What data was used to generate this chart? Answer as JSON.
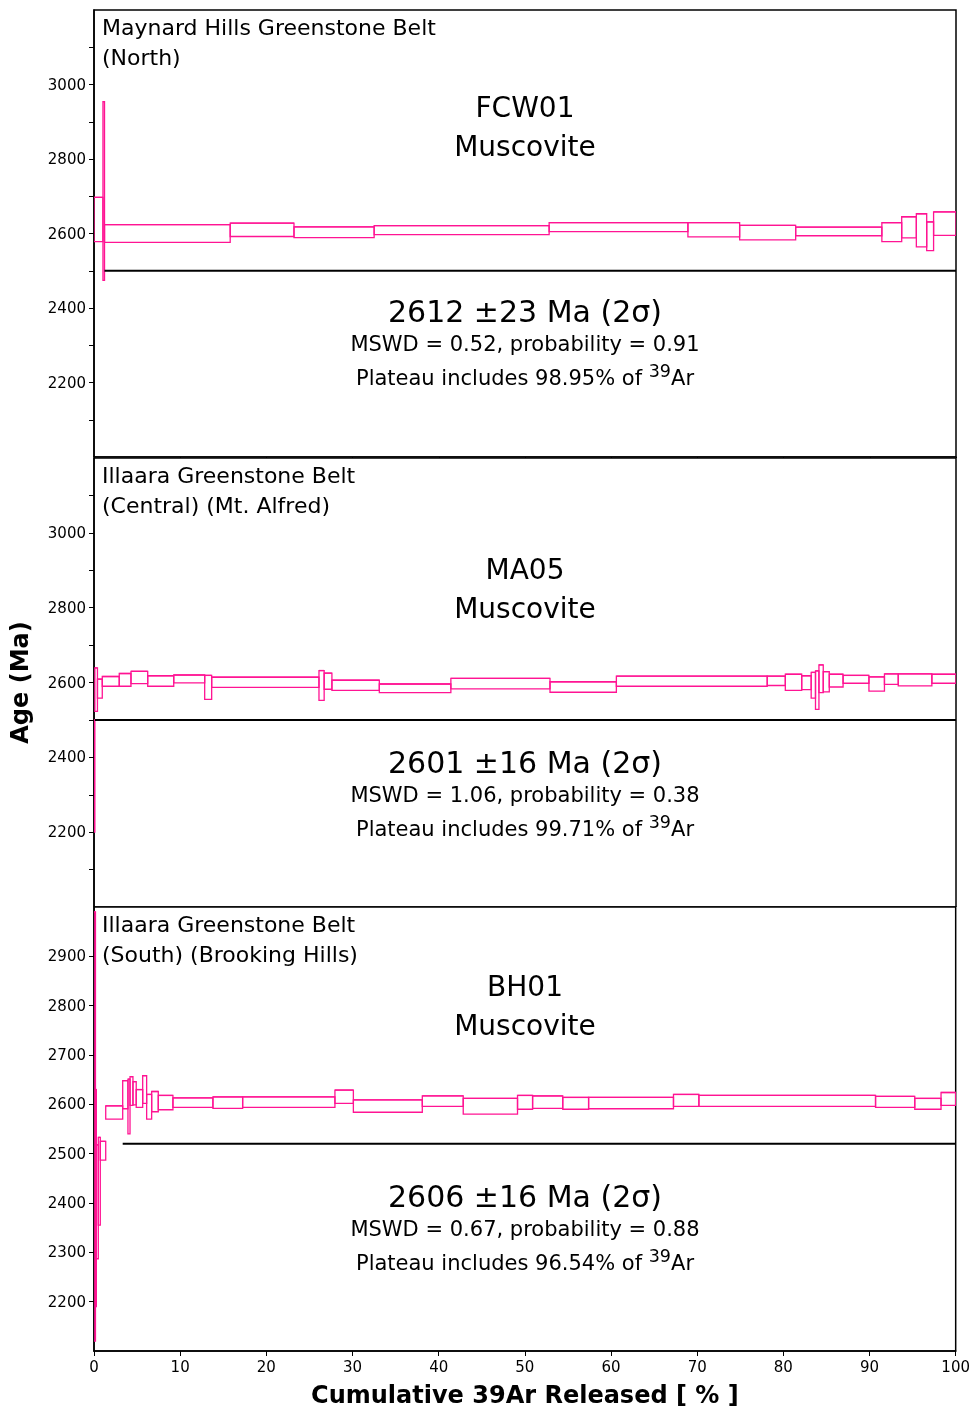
{
  "chart_data": [
    {
      "type": "bar",
      "title": "Maynard Hills Greenstone Belt\n(North)",
      "subtitle": "FCW01\nMuscovite",
      "annotations": [
        "2612 ±23 Ma (2σ)",
        "MSWD = 0.52, probability = 0.91",
        "Plateau includes 98.95% of $^{39}$Ar"
      ],
      "xlim": [
        0,
        100
      ],
      "xticks": [
        0,
        10,
        20,
        30,
        40,
        50,
        60,
        70,
        80,
        90,
        100
      ],
      "ylim": [
        2000,
        3200
      ],
      "yticks": [
        {
          "value": 2100,
          "label": null
        },
        2200,
        {
          "value": 2300,
          "label": null
        },
        2400,
        {
          "value": 2500,
          "label": null
        },
        2600,
        {
          "value": 2700,
          "label": null
        },
        2800,
        {
          "value": 2900,
          "label": null
        },
        3000,
        {
          "value": 3100,
          "label": null
        }
      ],
      "tick_labels": "y",
      "series": [
        {
          "color": "#ff1493",
          "x": [
            0.52,
            1.13,
            8.51,
            19.5,
            27.85,
            42.65,
            60.85,
            71.9,
            78.15,
            86.4,
            92.55,
            94.55,
            96.0,
            97.0,
            98.7
          ],
          "xerrors": [
            0.52,
            0.09,
            7.29,
            3.7,
            4.65,
            10.15,
            8.05,
            3.0,
            3.25,
            5.0,
            1.15,
            0.85,
            0.6,
            0.4,
            1.3
          ],
          "base": [
            2578,
            2474,
            2576,
            2592,
            2589,
            2597,
            2605,
            2591,
            2583,
            2594,
            2578,
            2588,
            2564,
            2554,
            2595
          ],
          "values": [
            119,
            480,
            48,
            36,
            29,
            24,
            24,
            38,
            39,
            23,
            51,
            57,
            89,
            77,
            63
          ]
        },
        {
          "type": "line",
          "color": "#000000",
          "x": [
            1.22,
            100
          ],
          "values": [
            2500,
            2500
          ]
        }
      ]
    },
    {
      "type": "bar",
      "title": "Illaara Greenstone Belt\n(Central) (Mt. Alfred)",
      "subtitle": "MA05\nMuscovite",
      "ylabel": "Age (Ma)",
      "annotations": [
        "2601 ±16 Ma (2σ)",
        "MSWD = 1.06, probability = 0.38",
        "Plateau includes 99.71% of $^{39}$Ar"
      ],
      "xlim": [
        0,
        100
      ],
      "xticks": [
        0,
        10,
        20,
        30,
        40,
        50,
        60,
        70,
        80,
        90,
        100
      ],
      "ylim": [
        2000,
        3200
      ],
      "yticks": [
        {
          "value": 2100,
          "label": null
        },
        2200,
        {
          "value": 2300,
          "label": null
        },
        2400,
        {
          "value": 2500,
          "label": null
        },
        2600,
        {
          "value": 2700,
          "label": null
        },
        2800,
        {
          "value": 2900,
          "label": null
        },
        3000,
        {
          "value": 3100,
          "label": null
        }
      ],
      "tick_labels": "y",
      "series": [
        {
          "color": "#ff1493",
          "x": [
            0.05,
            0.25,
            0.68,
            1.945,
            3.61,
            5.26,
            7.74,
            11.045,
            13.245,
            19.875,
            26.4,
            27.15,
            30.35,
            37.25,
            47.15,
            56.75,
            69.35,
            79.15,
            81.15,
            82.65,
            83.45,
            83.9,
            84.35,
            84.95,
            86.1,
            88.4,
            90.8,
            92.5,
            95.25,
            98.6
          ],
          "xerrors": [
            0.05,
            0.15,
            0.28,
            0.985,
            0.68,
            0.97,
            1.51,
            1.795,
            0.405,
            6.225,
            0.3,
            0.45,
            2.75,
            4.15,
            5.75,
            3.85,
            8.75,
            1.05,
            0.95,
            0.55,
            0.25,
            0.2,
            0.25,
            0.35,
            0.8,
            1.5,
            0.9,
            0.8,
            1.95,
            1.4
          ],
          "base": [
            2200,
            2523,
            2558,
            2590,
            2590,
            2597,
            2590,
            2599,
            2555,
            2587,
            2552,
            2582,
            2579,
            2573,
            2583,
            2574,
            2590,
            2592,
            2579,
            2581,
            2558,
            2528,
            2573,
            2575,
            2588,
            2598,
            2577,
            2595,
            2591,
            2598
          ],
          "values": [
            300,
            116,
            51,
            26,
            34,
            33,
            28,
            21,
            64,
            27,
            80,
            43,
            27,
            23,
            28,
            28,
            27,
            25,
            43,
            37,
            69,
            103,
            74,
            54,
            34,
            21,
            38,
            28,
            32,
            24
          ]
        },
        {
          "type": "line",
          "color": "#000000",
          "x": [
            0.1,
            100
          ],
          "values": [
            2500,
            2500
          ]
        }
      ]
    },
    {
      "type": "bar",
      "title": "Illaara Greenstone Belt\n(South) (Brooking Hills)",
      "subtitle": "BH01\nMuscovite",
      "xlabel": "Cumulative 39Ar Released [ % ]",
      "annotations": [
        "2606 ±16 Ma (2σ)",
        "MSWD = 0.67, probability = 0.88",
        "Plateau includes 96.54% of $^{39}$Ar"
      ],
      "xlim": [
        0,
        100
      ],
      "xticks": [
        0,
        10,
        20,
        30,
        40,
        50,
        60,
        70,
        80,
        90,
        100
      ],
      "ylim": [
        2100,
        3000
      ],
      "yticks": [
        2200,
        2300,
        2400,
        2500,
        2600,
        2700,
        2800,
        2900
      ],
      "series": [
        {
          "color": "#ff1493",
          "x": [
            0.085,
            0.22,
            0.385,
            0.615,
            1.045,
            2.345,
            3.635,
            4.06,
            4.35,
            4.71,
            5.275,
            5.88,
            6.4,
            7.075,
            8.31,
            11.48,
            15.525,
            22.605,
            29.03,
            34.1,
            40.475,
            46.0,
            50.025,
            52.65,
            55.9,
            62.325,
            68.725,
            80.45,
            92.975,
            96.775,
            99.15
          ],
          "xerrors": [
            0.085,
            0.05,
            0.115,
            0.115,
            0.315,
            0.985,
            0.305,
            0.12,
            0.17,
            0.19,
            0.375,
            0.23,
            0.29,
            0.385,
            0.85,
            2.32,
            1.725,
            5.355,
            1.07,
            4.0,
            2.375,
            3.15,
            0.875,
            1.75,
            1.5,
            4.925,
            1.475,
            10.25,
            2.275,
            1.525,
            0.85
          ],
          "base": [
            2120,
            2190,
            2287,
            2355,
            2487,
            2570,
            2591,
            2540,
            2598,
            2599,
            2594,
            2602,
            2570,
            2585,
            2589,
            2594,
            2592,
            2594,
            2602,
            2584,
            2596,
            2580,
            2590,
            2592,
            2590,
            2591,
            2596,
            2596,
            2594,
            2590,
            2598
          ],
          "values": [
            870,
            440,
            231,
            178,
            38,
            27,
            57,
            111,
            58,
            47,
            36,
            56,
            50,
            41,
            29,
            19,
            23,
            21,
            27,
            25,
            21,
            32,
            28,
            25,
            24,
            23,
            24,
            22,
            22,
            22,
            26
          ]
        },
        {
          "type": "line",
          "color": "#000000",
          "x": [
            3.33,
            100
          ],
          "values": [
            2520,
            2520
          ]
        }
      ]
    }
  ]
}
